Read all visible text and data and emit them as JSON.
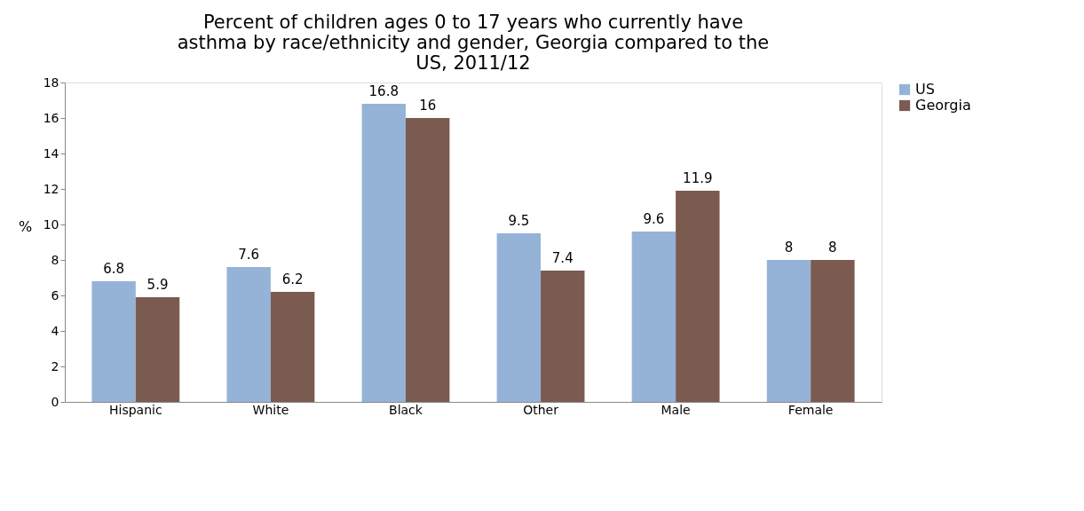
{
  "chart_data": {
    "type": "bar",
    "title": "Percent of children ages 0 to 17 years who currently have asthma by race/ethnicity and gender, Georgia compared to the US, 2011/12",
    "ylabel": "%",
    "categories": [
      "Hispanic",
      "White",
      "Black",
      "Other",
      "Male",
      "Female"
    ],
    "series": [
      {
        "name": "US",
        "color": "#95b3d7",
        "values": [
          6.8,
          7.6,
          16.8,
          9.5,
          9.6,
          8
        ]
      },
      {
        "name": "Georgia",
        "color": "#7b5b50",
        "values": [
          5.9,
          6.2,
          16,
          7.4,
          11.9,
          8
        ]
      }
    ],
    "ylim": [
      0,
      18
    ],
    "yticks": [
      0,
      2,
      4,
      6,
      8,
      10,
      12,
      14,
      16,
      18
    ],
    "data_labels": true,
    "legend": "right",
    "grid": false
  }
}
